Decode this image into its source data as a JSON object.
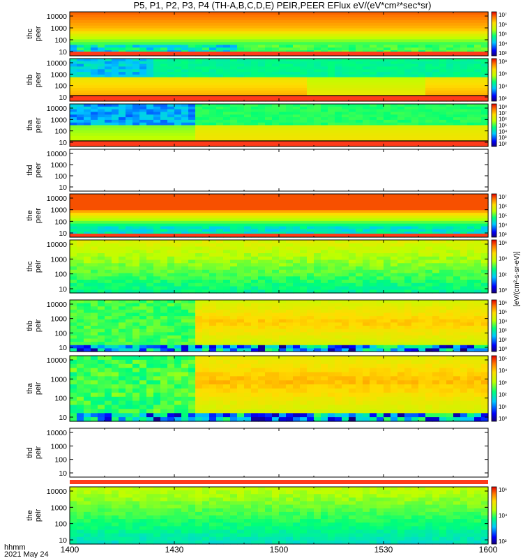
{
  "chart_data": {
    "type": "heatmap",
    "title": "P5, P1, P2, P3, P4 (TH-A,B,C,D,E) PEIR,PEER EFlux eV/(eV*cm²*sec*sr)",
    "x_axis": {
      "label_line1": "hhmm",
      "label_line2": "2021 May 24",
      "ticks": [
        "1400",
        "1430",
        "1500",
        "1530",
        "1600"
      ],
      "range_minutes": [
        0,
        120
      ]
    },
    "y_scale": "log",
    "y_ticks": [
      "10",
      "100",
      "1000",
      "10000"
    ],
    "colormap": "rainbow",
    "colors": {
      "low": "#1a1aff",
      "high": "#ff1a1a",
      "fill": "#ff3b1a",
      "line": "#000000"
    },
    "colorbar_label": "[eV/(cm²-s-sr-eV)]",
    "panels": [
      {
        "name": "thc peer",
        "data": true,
        "cb_ticks": [
          "10³",
          "10⁴",
          "10⁵",
          "10⁶",
          "10⁷"
        ]
      },
      {
        "name": "thb peer",
        "data": true,
        "cb_ticks": [
          "10²",
          "10⁴",
          "10⁶",
          "10⁸"
        ]
      },
      {
        "name": "tha peer",
        "data": true,
        "cb_ticks": [
          "10²",
          "10³",
          "10⁴",
          "10⁵",
          "10⁶",
          "10⁷",
          "10⁸"
        ]
      },
      {
        "name": "thd peer",
        "data": false,
        "cb_ticks": []
      },
      {
        "name": "the peer",
        "data": true,
        "cb_ticks": [
          "10³",
          "10⁴",
          "10⁵",
          "10⁶",
          "10⁷"
        ]
      },
      {
        "name": "thc peir",
        "data": true,
        "cb_ticks": [
          "10⁰",
          "10²",
          "10⁴",
          "10⁶"
        ]
      },
      {
        "name": "thb peir",
        "data": true,
        "cb_ticks": [
          "10⁰",
          "10²",
          "10³",
          "10⁴",
          "10⁵",
          "10⁶"
        ]
      },
      {
        "name": "tha peir",
        "data": true,
        "cb_ticks": [
          "10⁰",
          "10¹",
          "10²",
          "10³",
          "10⁴",
          "10⁵"
        ]
      },
      {
        "name": "thd peir",
        "data": false,
        "cb_ticks": []
      },
      {
        "name": "the peir",
        "data": true,
        "cb_ticks": [
          "10²",
          "10⁴",
          "10⁶"
        ]
      }
    ]
  }
}
